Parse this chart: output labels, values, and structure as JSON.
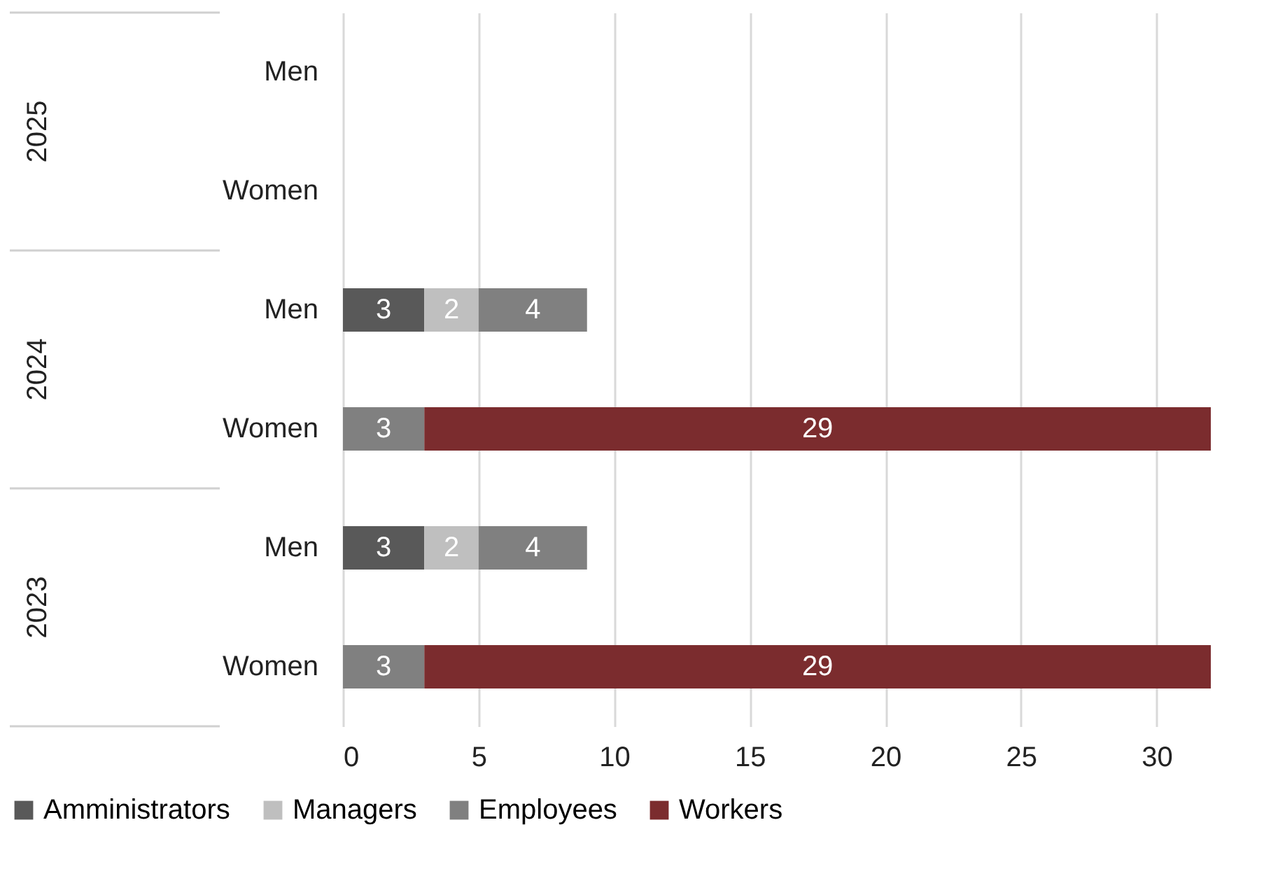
{
  "chart_data": {
    "type": "bar",
    "orientation": "horizontal",
    "stacked": true,
    "categories": [
      "Men",
      "Women",
      "Men",
      "Women",
      "Men",
      "Women"
    ],
    "annotations": [
      "2025",
      "2024",
      "2023"
    ],
    "series": [
      {
        "name": "Amministrators",
        "color": "#595959",
        "values": [
          null,
          null,
          3,
          null,
          3,
          null
        ]
      },
      {
        "name": "Managers",
        "color": "#bfbfbf",
        "values": [
          null,
          null,
          2,
          null,
          2,
          null
        ]
      },
      {
        "name": "Employees",
        "color": "#808080",
        "values": [
          null,
          null,
          4,
          3,
          4,
          3
        ]
      },
      {
        "name": "Workers",
        "color": "#7b2c2e",
        "values": [
          null,
          null,
          null,
          29,
          null,
          29
        ]
      }
    ],
    "xlim": [
      0,
      32
    ],
    "xticks": [
      0,
      5,
      10,
      15,
      20,
      25,
      30
    ],
    "grid": "x",
    "legend": "bottom",
    "data_labels": true
  }
}
